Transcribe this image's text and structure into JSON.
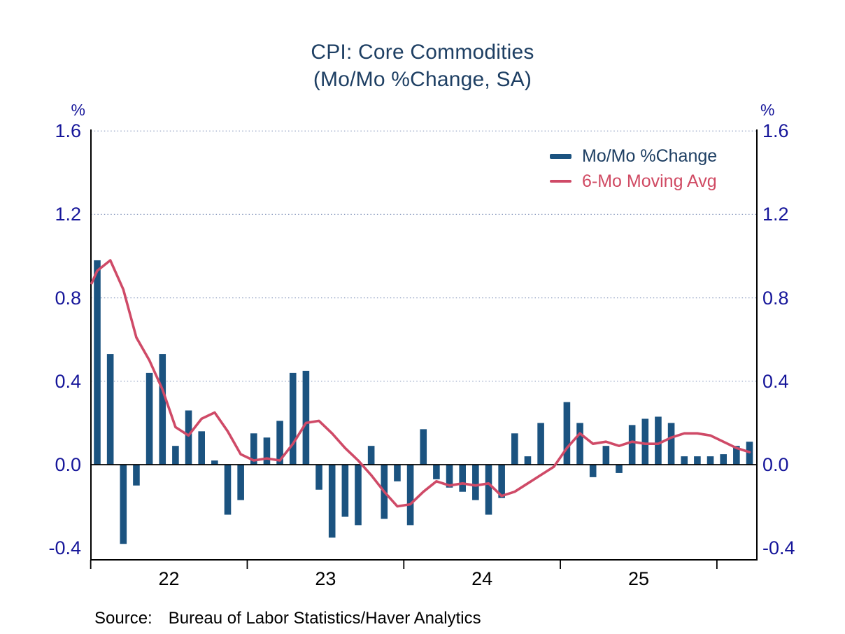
{
  "title": {
    "line1": "CPI: Core Commodities",
    "line2": "(Mo/Mo %Change, SA)"
  },
  "y_axis": {
    "unit_left": "%",
    "unit_right": "%",
    "tick_labels": [
      "1.6",
      "1.2",
      "0.8",
      "0.4",
      "0.0",
      "-0.4"
    ],
    "tick_values": [
      1.6,
      1.2,
      0.8,
      0.4,
      0.0,
      -0.4
    ]
  },
  "x_axis": {
    "year_labels": [
      "22",
      "23",
      "24",
      "25"
    ]
  },
  "legend": {
    "items": [
      {
        "label": "Mo/Mo %Change",
        "swatch": "bar",
        "color": "#1b5380",
        "text_color": "#1e3f63"
      },
      {
        "label": "6-Mo Moving Avg",
        "swatch": "line",
        "color": "#cf4a67",
        "text_color": "#d04a63"
      }
    ]
  },
  "source": {
    "label": "Source:",
    "text": "Bureau of Labor Statistics/Haver Analytics"
  },
  "colors": {
    "bar": "#1b5380",
    "line": "#cf4a67",
    "axis_text": "#16169a",
    "title_text": "#1e3f63",
    "grid_dotted": "#8d9dc0",
    "axis_line": "#000000"
  },
  "chart_data": {
    "type": "bar+line",
    "title": "CPI: Core Commodities (Mo/Mo %Change, SA)",
    "ylabel": "%",
    "ylim": [
      -0.456,
      1.6
    ],
    "y_gridlines_dotted": [
      0.4,
      0.8,
      1.2,
      1.6
    ],
    "zero_line": true,
    "n_months": 51,
    "x_tick_month_boundaries": [
      0,
      12,
      24,
      36,
      48
    ],
    "x_year_labels": [
      {
        "label": "22",
        "center_month_boundary": 6
      },
      {
        "label": "23",
        "center_month_boundary": 18
      },
      {
        "label": "24",
        "center_month_boundary": 30
      },
      {
        "label": "25",
        "center_month_boundary": 42
      }
    ],
    "legend_position": "top-right",
    "series": [
      {
        "name": "Mo/Mo %Change",
        "type": "bar",
        "color": "#1b5380",
        "values": [
          0.98,
          0.53,
          -0.38,
          -0.1,
          0.44,
          0.53,
          0.09,
          0.26,
          0.16,
          0.02,
          -0.24,
          -0.17,
          0.15,
          0.13,
          0.21,
          0.44,
          0.45,
          -0.12,
          -0.35,
          -0.25,
          -0.29,
          0.09,
          -0.26,
          -0.08,
          -0.29,
          0.17,
          -0.07,
          -0.11,
          -0.13,
          -0.17,
          -0.24,
          -0.16,
          0.15,
          0.04,
          0.2,
          0.0,
          0.3,
          0.2,
          -0.06,
          0.09,
          -0.04,
          0.19,
          0.22,
          0.23,
          0.2,
          0.04,
          0.04,
          0.04,
          0.05,
          0.09,
          0.11
        ]
      },
      {
        "name": "6-Mo Moving Avg",
        "type": "line",
        "color": "#cf4a67",
        "start_edge_value": 0.87,
        "values": [
          0.93,
          0.98,
          0.84,
          0.61,
          0.5,
          0.36,
          0.18,
          0.14,
          0.22,
          0.25,
          0.16,
          0.05,
          0.02,
          0.03,
          0.02,
          0.1,
          0.2,
          0.21,
          0.15,
          0.08,
          0.02,
          -0.05,
          -0.13,
          -0.2,
          -0.19,
          -0.13,
          -0.08,
          -0.1,
          -0.09,
          -0.1,
          -0.09,
          -0.15,
          -0.13,
          -0.09,
          -0.05,
          -0.01,
          0.08,
          0.15,
          0.1,
          0.11,
          0.09,
          0.11,
          0.1,
          0.1,
          0.13,
          0.15,
          0.15,
          0.14,
          0.11,
          0.08,
          0.06
        ]
      }
    ]
  }
}
